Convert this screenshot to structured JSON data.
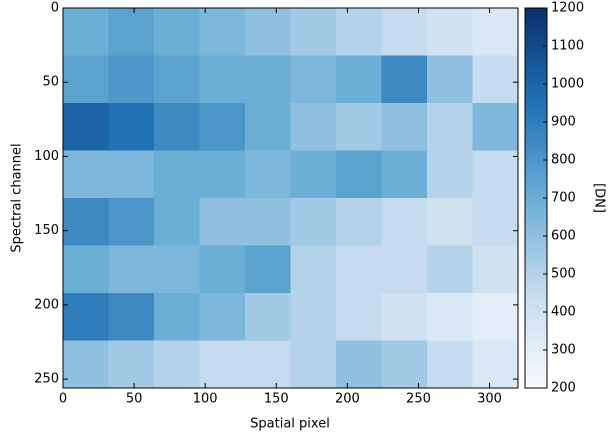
{
  "chart_data": {
    "type": "heatmap",
    "xlabel": "Spatial pixel",
    "ylabel": "Spectral channel",
    "colorbar_label": "[DN]",
    "xlim": [
      0,
      320
    ],
    "ylim": [
      256,
      0
    ],
    "xticks": [
      0,
      50,
      100,
      150,
      200,
      250,
      300
    ],
    "yticks": [
      0,
      50,
      100,
      150,
      200,
      250
    ],
    "clim": [
      200,
      1200
    ],
    "cticks": [
      200,
      300,
      400,
      500,
      600,
      700,
      800,
      900,
      1000,
      1100,
      1200
    ],
    "colormap": [
      "#f7fbff",
      "#c6dbef",
      "#6baed6",
      "#2171b5",
      "#08306b"
    ],
    "values": [
      [
        700,
        750,
        700,
        650,
        600,
        550,
        500,
        450,
        400,
        350
      ],
      [
        750,
        800,
        750,
        700,
        700,
        650,
        700,
        850,
        600,
        450
      ],
      [
        1000,
        950,
        850,
        800,
        700,
        600,
        550,
        600,
        500,
        650
      ],
      [
        650,
        650,
        700,
        700,
        650,
        700,
        750,
        700,
        500,
        450
      ],
      [
        850,
        800,
        700,
        600,
        600,
        550,
        500,
        450,
        400,
        450
      ],
      [
        700,
        650,
        650,
        700,
        750,
        500,
        450,
        450,
        500,
        400
      ],
      [
        900,
        850,
        700,
        650,
        550,
        500,
        450,
        400,
        350,
        300
      ],
      [
        600,
        550,
        500,
        450,
        450,
        500,
        600,
        550,
        450,
        350
      ]
    ]
  }
}
